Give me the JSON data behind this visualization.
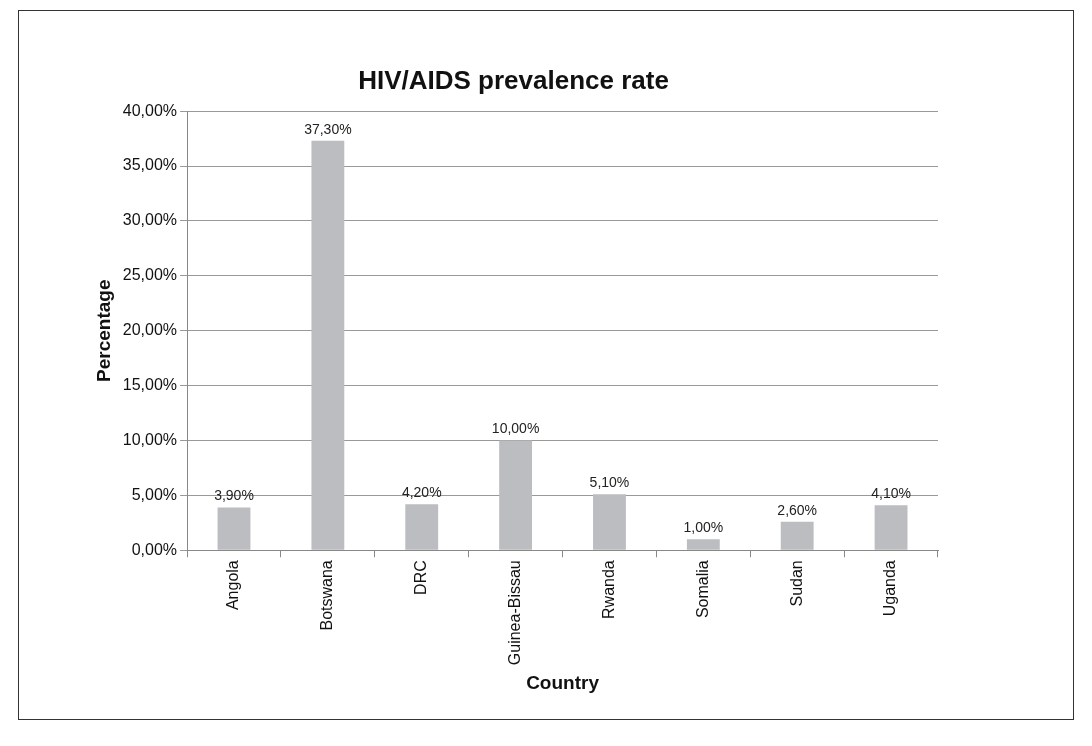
{
  "chart_data": {
    "type": "bar",
    "title": "HIV/AIDS prevalence rate",
    "xlabel": "Country",
    "ylabel": "Percentage",
    "categories": [
      "Angola",
      "Botswana",
      "DRC",
      "Guinea-Bissau",
      "Rwanda",
      "Somalia",
      "Sudan",
      "Uganda"
    ],
    "values": [
      3.9,
      37.3,
      4.2,
      10.0,
      5.1,
      1.0,
      2.6,
      4.1
    ],
    "value_labels": [
      "3,90%",
      "37,30%",
      "4,20%",
      "10,00%",
      "5,10%",
      "1,00%",
      "2,60%",
      "4,10%"
    ],
    "color": "#bcbdc0",
    "ylim": [
      0,
      40
    ],
    "yticks": [
      {
        "value": 0,
        "label": "0,00%"
      },
      {
        "value": 5,
        "label": "5,00%"
      },
      {
        "value": 10,
        "label": "10,00%"
      },
      {
        "value": 15,
        "label": "15,00%"
      },
      {
        "value": 20,
        "label": "20,00%"
      },
      {
        "value": 25,
        "label": "25,00%"
      },
      {
        "value": 30,
        "label": "30,00%"
      },
      {
        "value": 35,
        "label": "35,00%"
      },
      {
        "value": 40,
        "label": "40,00%"
      }
    ],
    "grid": "y"
  }
}
